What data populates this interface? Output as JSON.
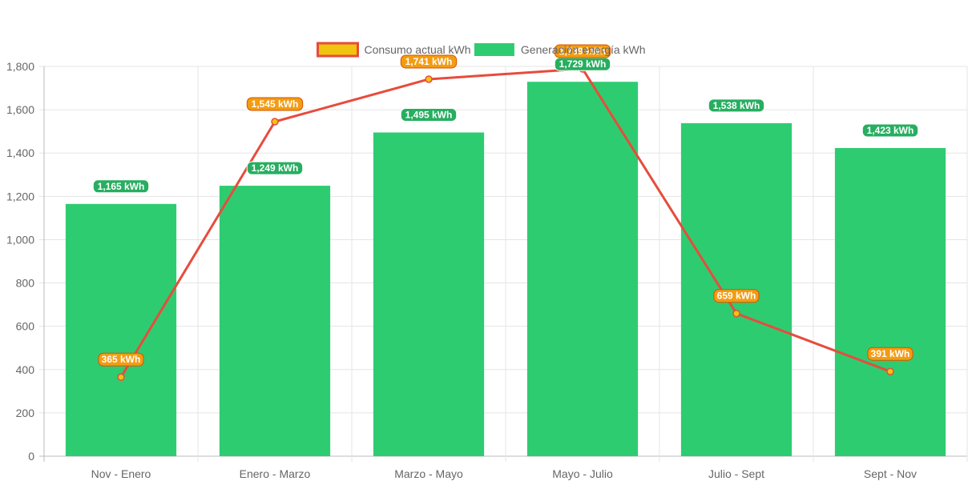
{
  "chart_data": {
    "type": "bar",
    "categories": [
      "Nov - Enero",
      "Enero - Marzo",
      "Marzo - Mayo",
      "Mayo - Julio",
      "Julio - Sept",
      "Sept - Nov"
    ],
    "series": [
      {
        "name": "Consumo actual kWh",
        "type": "line",
        "values": [
          365,
          1545,
          1741,
          1789,
          659,
          391
        ],
        "labels": [
          "365 kWh",
          "1,545 kWh",
          "1,741 kWh",
          "1,789 kWh",
          "659 kWh",
          "391 kWh"
        ],
        "line_color": "#e74c3c",
        "fill_color": "#f1c40f"
      },
      {
        "name": "Generación energía kWh",
        "type": "bar",
        "values": [
          1165,
          1249,
          1495,
          1729,
          1538,
          1423
        ],
        "labels": [
          "1,165 kWh",
          "1,249 kWh",
          "1,495 kWh",
          "1,729 kWh",
          "1,538 kWh",
          "1,423 kWh"
        ],
        "color": "#2ecc71"
      }
    ],
    "ylim": [
      0,
      1800
    ],
    "yticks": [
      0,
      200,
      400,
      600,
      800,
      1000,
      1200,
      1400,
      1600,
      1800
    ],
    "ytick_labels": [
      "0",
      "200",
      "400",
      "600",
      "800",
      "1,000",
      "1,200",
      "1,400",
      "1,600",
      "1,800"
    ],
    "grid": true,
    "legend": "top-center"
  }
}
